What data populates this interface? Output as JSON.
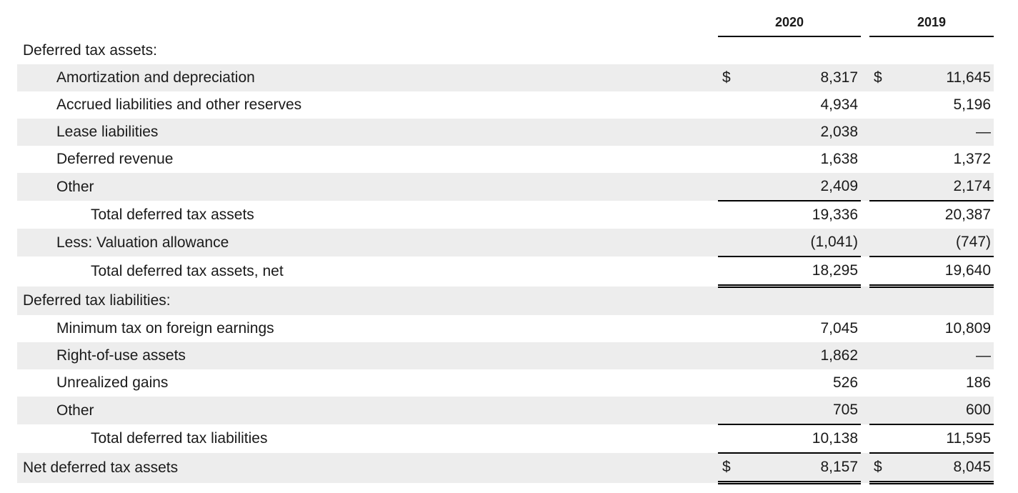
{
  "years": [
    "2020",
    "2019"
  ],
  "currency_symbol": "$",
  "rows": {
    "assets_heading": "Deferred tax assets:",
    "amort": {
      "label": "Amortization and depreciation",
      "y2020": "8,317",
      "y2019": "11,645"
    },
    "accrued": {
      "label": "Accrued liabilities and other reserves",
      "y2020": "4,934",
      "y2019": "5,196"
    },
    "lease": {
      "label": "Lease liabilities",
      "y2020": "2,038",
      "y2019": "—"
    },
    "defrev": {
      "label": "Deferred revenue",
      "y2020": "1,638",
      "y2019": "1,372"
    },
    "other_a": {
      "label": "Other",
      "y2020": "2,409",
      "y2019": "2,174"
    },
    "total_dta": {
      "label": "Total deferred tax assets",
      "y2020": "19,336",
      "y2019": "20,387"
    },
    "valuation": {
      "label": "Less: Valuation allowance",
      "y2020": "(1,041)",
      "y2019": "(747)"
    },
    "total_dta_net": {
      "label": "Total deferred tax assets, net",
      "y2020": "18,295",
      "y2019": "19,640"
    },
    "liab_heading": "Deferred tax liabilities:",
    "mintax": {
      "label": "Minimum tax on foreign earnings",
      "y2020": "7,045",
      "y2019": "10,809"
    },
    "rou": {
      "label": "Right-of-use assets",
      "y2020": "1,862",
      "y2019": "—"
    },
    "unreal": {
      "label": "Unrealized gains",
      "y2020": "526",
      "y2019": "186"
    },
    "other_l": {
      "label": "Other",
      "y2020": "705",
      "y2019": "600"
    },
    "total_dtl": {
      "label": "Total deferred tax liabilities",
      "y2020": "10,138",
      "y2019": "11,595"
    },
    "net": {
      "label": "Net deferred tax assets",
      "y2020": "8,157",
      "y2019": "8,045"
    }
  }
}
